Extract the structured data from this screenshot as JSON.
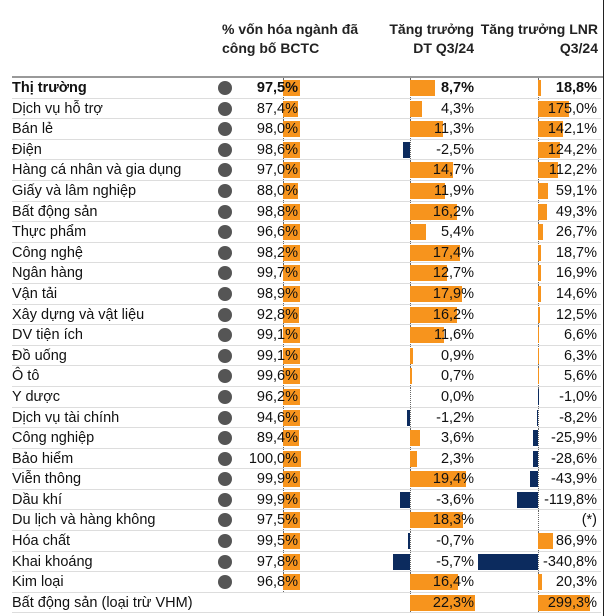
{
  "headers": {
    "col1": "% vốn hóa ngành đã công bố BCTC",
    "col2": "Tăng trưởng DT Q3/24",
    "col3": "Tăng trưởng LNR Q3/24"
  },
  "colors": {
    "positive": "#f7941d",
    "negative": "#0c2b5e",
    "dot": "#555555"
  },
  "rows": [
    {
      "label": "Thị trường",
      "cap": "97,5%",
      "dt": "8,7%",
      "lnr": "18,8%",
      "bold": true
    },
    {
      "label": "Dịch vụ hỗ trợ",
      "cap": "87,4%",
      "dt": "4,3%",
      "lnr": "175,0%"
    },
    {
      "label": "Bán lẻ",
      "cap": "98,0%",
      "dt": "11,3%",
      "lnr": "142,1%"
    },
    {
      "label": "Điện",
      "cap": "98,6%",
      "dt": "-2,5%",
      "lnr": "124,2%"
    },
    {
      "label": "Hàng cá nhân và gia dụng",
      "cap": "97,0%",
      "dt": "14,7%",
      "lnr": "112,2%"
    },
    {
      "label": "Giấy và lâm nghiệp",
      "cap": "88,0%",
      "dt": "11,9%",
      "lnr": "59,1%"
    },
    {
      "label": "Bất động sản",
      "cap": "98,8%",
      "dt": "16,2%",
      "lnr": "49,3%"
    },
    {
      "label": "Thực phẩm",
      "cap": "96,6%",
      "dt": "5,4%",
      "lnr": "26,7%"
    },
    {
      "label": "Công nghệ",
      "cap": "98,2%",
      "dt": "17,4%",
      "lnr": "18,7%"
    },
    {
      "label": "Ngân hàng",
      "cap": "99,7%",
      "dt": "12,7%",
      "lnr": "16,9%"
    },
    {
      "label": "Vận tải",
      "cap": "98,9%",
      "dt": "17,9%",
      "lnr": "14,6%"
    },
    {
      "label": "Xây dựng và vật liệu",
      "cap": "92,8%",
      "dt": "16,2%",
      "lnr": "12,5%"
    },
    {
      "label": "DV tiện ích",
      "cap": "99,1%",
      "dt": "11,6%",
      "lnr": "6,6%"
    },
    {
      "label": "Đồ uống",
      "cap": "99,1%",
      "dt": "0,9%",
      "lnr": "6,3%"
    },
    {
      "label": "Ô tô",
      "cap": "99,6%",
      "dt": "0,7%",
      "lnr": "5,6%"
    },
    {
      "label": "Y dược",
      "cap": "96,2%",
      "dt": "0,0%",
      "lnr": "-1,0%"
    },
    {
      "label": "Dịch vụ tài chính",
      "cap": "94,6%",
      "dt": "-1,2%",
      "lnr": "-8,2%"
    },
    {
      "label": "Công nghiệp",
      "cap": "89,4%",
      "dt": "3,6%",
      "lnr": "-25,9%"
    },
    {
      "label": "Bảo hiểm",
      "cap": "100,0%",
      "dt": "2,3%",
      "lnr": "-28,6%"
    },
    {
      "label": "Viễn thông",
      "cap": "99,9%",
      "dt": "19,4%",
      "lnr": "-43,9%"
    },
    {
      "label": "Dầu khí",
      "cap": "99,9%",
      "dt": "-3,6%",
      "lnr": "-119,8%"
    },
    {
      "label": "Du lịch và hàng không",
      "cap": "97,5%",
      "dt": "18,3%",
      "lnr": "(*)"
    },
    {
      "label": "Hóa chất",
      "cap": "99,5%",
      "dt": "-0,7%",
      "lnr": "86,9%"
    },
    {
      "label": "Khai khoáng",
      "cap": "97,8%",
      "dt": "-5,7%",
      "lnr": "-340,8%"
    },
    {
      "label": "Kim loại",
      "cap": "96,8%",
      "dt": "16,4%",
      "lnr": "20,3%"
    },
    {
      "label": "Bất động sản (loại trừ VHM)",
      "cap": "",
      "dt": "22,3%",
      "lnr": "299,3%"
    }
  ]
}
